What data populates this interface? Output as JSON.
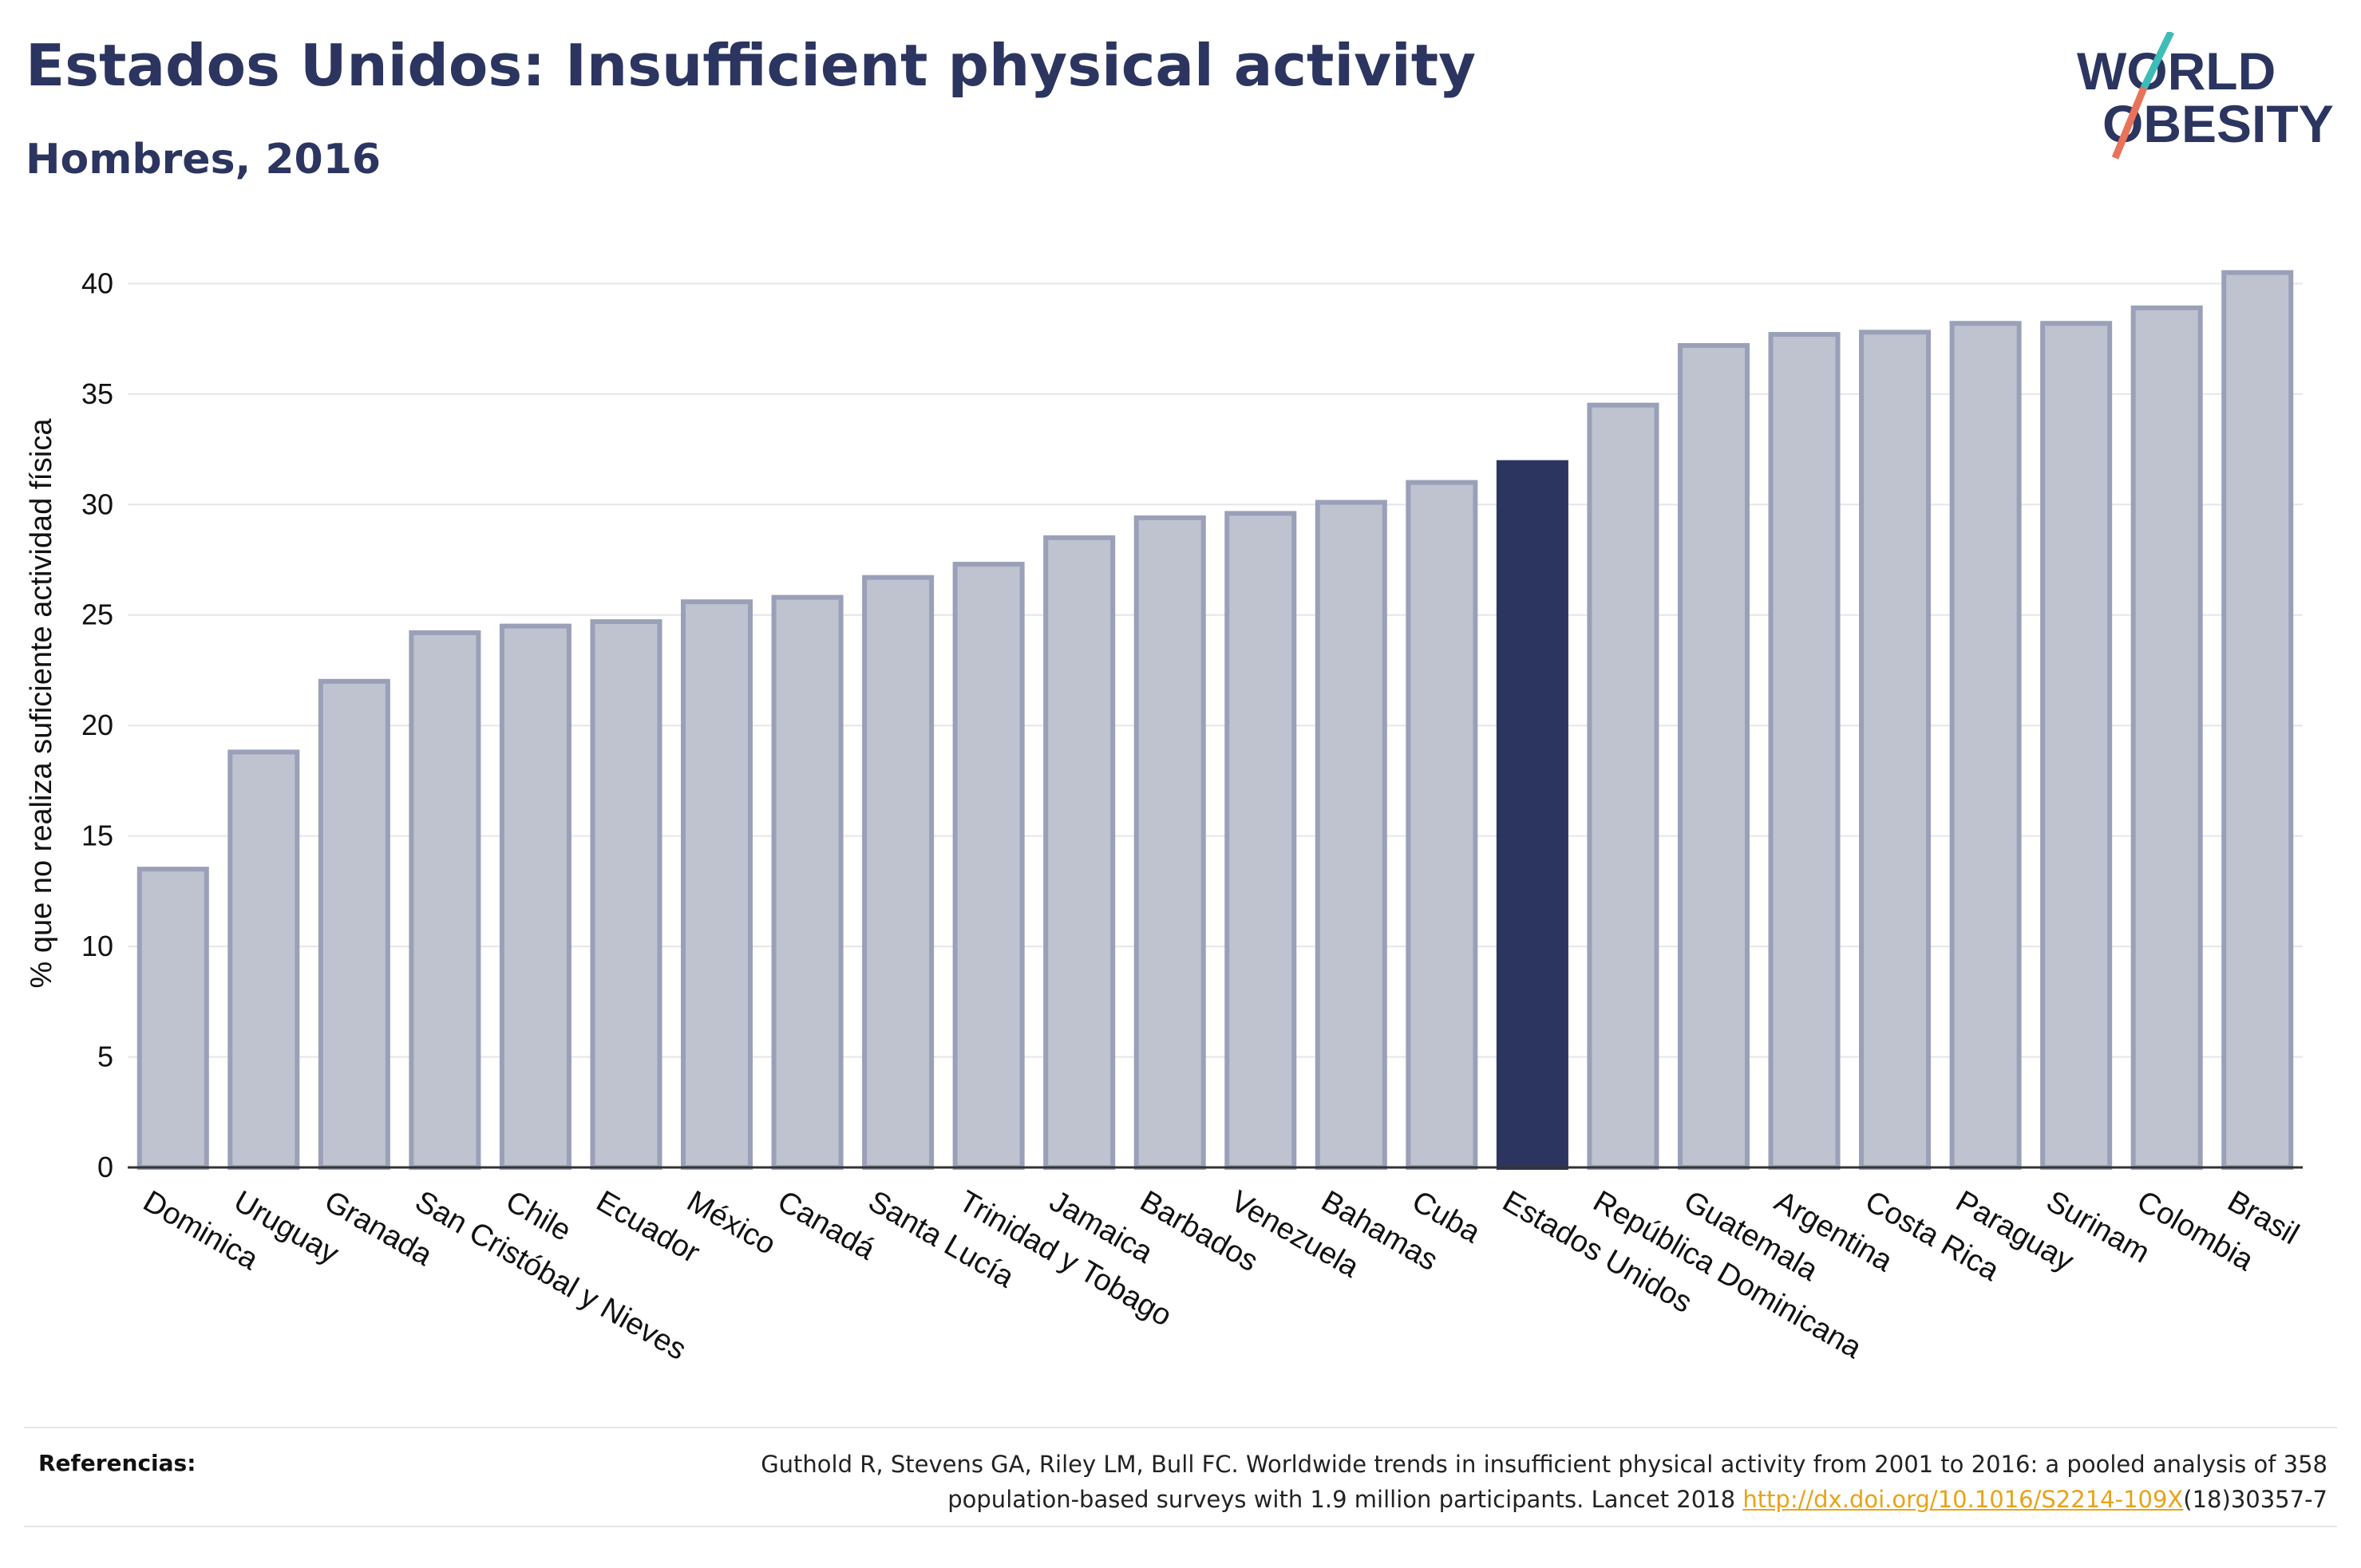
{
  "header": {
    "title": "Estados Unidos: Insufficient physical activity",
    "subtitle": "Hombres, 2016"
  },
  "logo": {
    "line1": "WORLD",
    "line2": "OBESITY"
  },
  "chart_data": {
    "type": "bar",
    "ylabel": "% que no realiza suficiente actividad física",
    "xlabel": "",
    "ylim": [
      0,
      42
    ],
    "yticks": [
      0,
      5,
      10,
      15,
      20,
      25,
      30,
      35,
      40
    ],
    "grid": true,
    "highlight": "Estados Unidos",
    "colors": {
      "bar": "#bfc3d0",
      "bar_edge": "#9aa0b8",
      "highlight": "#2b3560"
    },
    "categories": [
      "Dominica",
      "Uruguay",
      "Granada",
      "San Cristóbal y Nieves",
      "Chile",
      "Ecuador",
      "México",
      "Canadá",
      "Santa Lucía",
      "Trinidad y Tobago",
      "Jamaica",
      "Barbados",
      "Venezuela",
      "Bahamas",
      "Cuba",
      "Estados Unidos",
      "República Dominicana",
      "Guatemala",
      "Argentina",
      "Costa Rica",
      "Paraguay",
      "Surinam",
      "Colombia",
      "Brasil"
    ],
    "values": [
      13.5,
      18.8,
      22.0,
      24.2,
      24.5,
      24.7,
      25.6,
      25.8,
      26.7,
      27.3,
      28.5,
      29.4,
      29.6,
      30.1,
      31.0,
      31.9,
      34.5,
      37.2,
      37.7,
      37.8,
      38.2,
      38.2,
      38.9,
      40.5
    ]
  },
  "footer": {
    "label": "Referencias:",
    "text1": "Guthold R, Stevens GA, Riley LM, Bull FC. Worldwide trends in insufficient physical activity from 2001 to 2016: a pooled analysis of 358",
    "text2": "population-based surveys with 1.9 million participants. Lancet 2018 ",
    "link": "http://dx.doi.org/10.1016/S2214-109X",
    "text3": "(18)30357-7"
  }
}
